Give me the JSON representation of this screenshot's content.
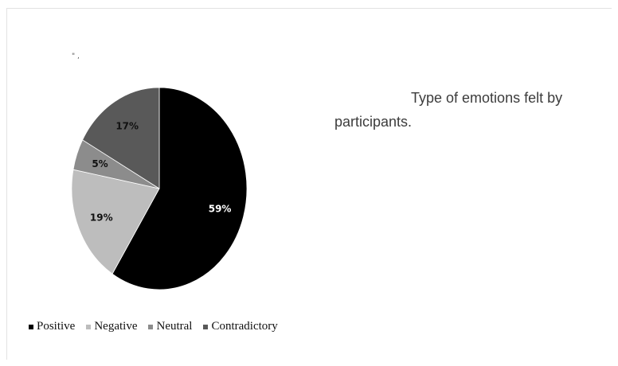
{
  "chart_data": {
    "type": "pie",
    "title": "",
    "caption": "Type of emotions felt by participants.",
    "categories": [
      "Positive",
      "Negative",
      "Neutral",
      "Contradictory"
    ],
    "values": [
      59,
      19,
      5,
      17
    ],
    "value_labels": [
      "59%",
      "19%",
      "5%",
      "17%"
    ],
    "colors": [
      "#000000",
      "#bdbdbd",
      "#8c8c8c",
      "#595959"
    ],
    "label_colors": [
      "#ffffff",
      "#111111",
      "#111111",
      "#111111"
    ],
    "start": "12 o'clock",
    "direction": "clockwise",
    "legend_position": "bottom-left"
  },
  "stray_mark": "\" ,"
}
